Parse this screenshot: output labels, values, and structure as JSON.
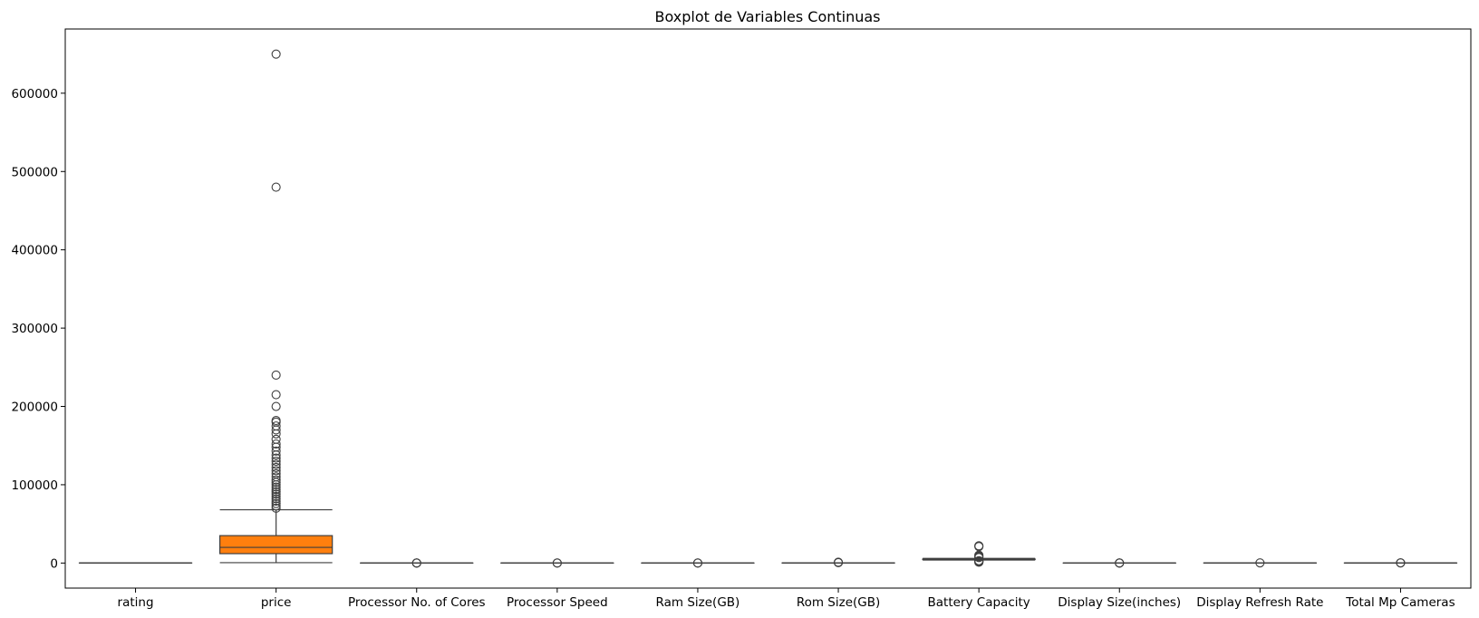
{
  "chart_data": {
    "type": "boxplot",
    "title": "Boxplot de Variables Continuas",
    "xlabel": "",
    "ylabel": "",
    "ylim": [
      -32000,
      682000
    ],
    "yticks": [
      0,
      100000,
      200000,
      300000,
      400000,
      500000,
      600000
    ],
    "ytick_labels": [
      "0",
      "100000",
      "200000",
      "300000",
      "400000",
      "500000",
      "600000"
    ],
    "grid": false,
    "legend": "none",
    "categories": [
      "rating",
      "price",
      "Processor No. of Cores",
      "Processor Speed",
      "Ram Size(GB)",
      "Rom Size(GB)",
      "Battery Capacity",
      "Display Size(inches)",
      "Display Refresh Rate",
      "Total Mp Cameras"
    ],
    "colors": [
      "#1f77b4",
      "#ff7f0e",
      "#2ca02c",
      "#d62728",
      "#9467bd",
      "#8c564b",
      "#e377c2",
      "#7f7f7f",
      "#bcbd22",
      "#17becf"
    ],
    "boxes": [
      {
        "name": "rating",
        "whisker_low": 60,
        "q1": 74,
        "median": 78,
        "q3": 82,
        "whisker_high": 89,
        "outliers": []
      },
      {
        "name": "price",
        "whisker_low": 500,
        "q1": 12000,
        "median": 20000,
        "q3": 35000,
        "whisker_high": 68000,
        "outliers": [
          650000,
          480000,
          240000,
          215000,
          200000,
          182000,
          180000,
          175000,
          170000,
          165000,
          158000,
          152000,
          148000,
          143000,
          138000,
          134000,
          130000,
          126000,
          122000,
          118000,
          114000,
          110000,
          106000,
          103000,
          100000,
          97000,
          94000,
          91000,
          88000,
          85000,
          82000,
          79000,
          76000,
          73000,
          70000
        ]
      },
      {
        "name": "Processor No. of Cores",
        "whisker_low": 8,
        "q1": 8,
        "median": 8,
        "q3": 8,
        "whisker_high": 8,
        "outliers": [
          4,
          6,
          1
        ]
      },
      {
        "name": "Processor Speed",
        "whisker_low": 1.6,
        "q1": 2.0,
        "median": 2.2,
        "q3": 2.8,
        "whisker_high": 3.2,
        "outliers": [
          1.2,
          3.5
        ]
      },
      {
        "name": "Ram Size(GB)",
        "whisker_low": 2,
        "q1": 4,
        "median": 6,
        "q3": 8,
        "whisker_high": 12,
        "outliers": [
          16,
          18
        ]
      },
      {
        "name": "Rom Size(GB)",
        "whisker_low": 32,
        "q1": 64,
        "median": 128,
        "q3": 128,
        "whisker_high": 256,
        "outliers": [
          512,
          1000
        ]
      },
      {
        "name": "Battery Capacity",
        "whisker_low": 3800,
        "q1": 4500,
        "median": 5000,
        "q3": 5000,
        "whisker_high": 6000,
        "outliers": [
          22000,
          21000,
          10000,
          9000,
          8000,
          7000,
          3000,
          2500,
          2000,
          1800,
          1500,
          1000
        ]
      },
      {
        "name": "Display Size(inches)",
        "whisker_low": 6.3,
        "q1": 6.5,
        "median": 6.6,
        "q3": 6.7,
        "whisker_high": 6.9,
        "outliers": [
          1.5,
          5.5,
          8
        ]
      },
      {
        "name": "Display Refresh Rate",
        "whisker_low": 60,
        "q1": 60,
        "median": 90,
        "q3": 120,
        "whisker_high": 165,
        "outliers": [
          240
        ]
      },
      {
        "name": "Total Mp Cameras",
        "whisker_low": 8,
        "q1": 50,
        "median": 64,
        "q3": 70,
        "whisker_high": 120,
        "outliers": [
          200,
          250
        ]
      }
    ]
  }
}
